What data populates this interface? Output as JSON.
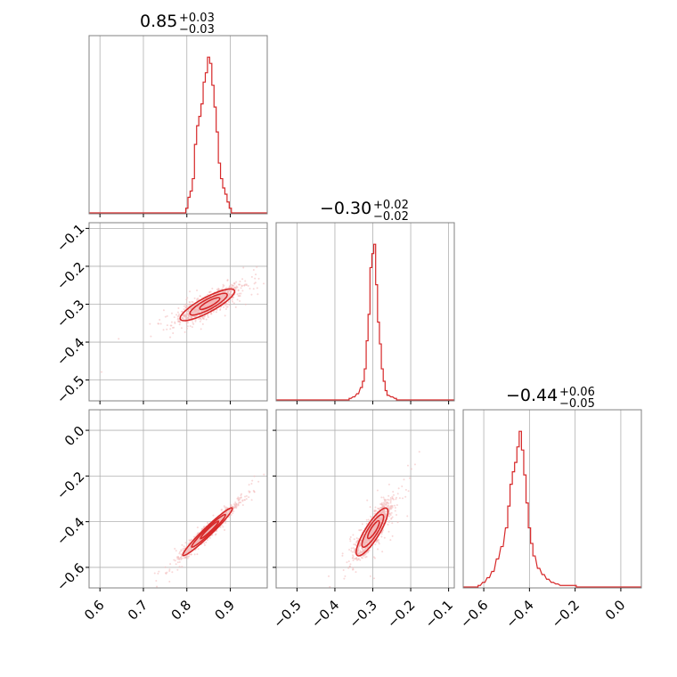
{
  "chart_data": [
    {
      "type": "histogram",
      "panel": "0-0",
      "title": {
        "value": "0.85",
        "plus": "+0.03",
        "minus": "−0.03"
      },
      "xlim": [
        0.575,
        0.985
      ],
      "x": [
        0.8,
        0.805,
        0.81,
        0.815,
        0.82,
        0.825,
        0.83,
        0.835,
        0.84,
        0.845,
        0.85,
        0.855,
        0.86,
        0.865,
        0.87,
        0.875,
        0.88,
        0.885,
        0.89,
        0.895,
        0.9
      ],
      "counts": [
        0.03,
        0.1,
        0.14,
        0.22,
        0.44,
        0.56,
        0.62,
        0.7,
        0.84,
        0.9,
        1.0,
        0.96,
        0.82,
        0.68,
        0.52,
        0.32,
        0.22,
        0.16,
        0.12,
        0.07,
        0.03
      ]
    },
    {
      "type": "scatter+contour",
      "panel": "1-0",
      "xlim": [
        0.575,
        0.985
      ],
      "ylim": [
        -0.555,
        -0.085
      ],
      "yticks": [
        "−0.1",
        "−0.2",
        "−0.3",
        "−0.4",
        "−0.5"
      ],
      "center": [
        0.85,
        -0.3
      ]
    },
    {
      "type": "histogram",
      "panel": "1-1",
      "title": {
        "value": "−0.30",
        "plus": "+0.02",
        "minus": "−0.02"
      },
      "xlim": [
        -0.555,
        -0.085
      ],
      "x": [
        -0.36,
        -0.35,
        -0.34,
        -0.33,
        -0.325,
        -0.32,
        -0.315,
        -0.31,
        -0.305,
        -0.3,
        -0.295,
        -0.29,
        -0.285,
        -0.28,
        -0.275,
        -0.27,
        -0.265,
        -0.26,
        -0.25,
        -0.24
      ],
      "counts": [
        0.01,
        0.02,
        0.04,
        0.08,
        0.12,
        0.2,
        0.38,
        0.55,
        0.85,
        0.94,
        1.0,
        0.74,
        0.5,
        0.36,
        0.2,
        0.12,
        0.06,
        0.03,
        0.02,
        0.01
      ]
    },
    {
      "type": "scatter+contour",
      "panel": "2-0",
      "xlim": [
        0.575,
        0.985
      ],
      "ylim": [
        -0.69,
        0.09
      ],
      "xticks": [
        "0.6",
        "0.7",
        "0.8",
        "0.9"
      ],
      "yticks": [
        "0.0",
        "−0.2",
        "−0.4",
        "−0.6"
      ],
      "center": [
        0.85,
        -0.44
      ]
    },
    {
      "type": "scatter+contour",
      "panel": "2-1",
      "xlim": [
        -0.555,
        -0.085
      ],
      "ylim": [
        -0.69,
        0.09
      ],
      "xticks": [
        "−0.5",
        "−0.4",
        "−0.3",
        "−0.2",
        "−0.1"
      ],
      "center": [
        -0.3,
        -0.44
      ]
    },
    {
      "type": "histogram",
      "panel": "2-2",
      "title": {
        "value": "−0.44",
        "plus": "+0.06",
        "minus": "−0.05"
      },
      "xlim": [
        -0.69,
        0.09
      ],
      "xticks": [
        "−0.6",
        "−0.4",
        "−0.2",
        "0.0"
      ],
      "x": [
        -0.62,
        -0.6,
        -0.58,
        -0.56,
        -0.54,
        -0.52,
        -0.5,
        -0.49,
        -0.48,
        -0.47,
        -0.46,
        -0.45,
        -0.44,
        -0.43,
        -0.42,
        -0.41,
        -0.4,
        -0.39,
        -0.38,
        -0.36,
        -0.34,
        -0.32,
        -0.3,
        -0.28,
        -0.26,
        -0.22,
        -0.2
      ],
      "counts": [
        0.01,
        0.03,
        0.06,
        0.1,
        0.18,
        0.26,
        0.38,
        0.52,
        0.66,
        0.74,
        0.8,
        0.9,
        1.0,
        0.88,
        0.72,
        0.54,
        0.38,
        0.28,
        0.2,
        0.12,
        0.08,
        0.05,
        0.03,
        0.02,
        0.01,
        0.01,
        0.01
      ]
    }
  ],
  "colors": {
    "line": "#d62728",
    "scatter": "#f2b8b8",
    "grid": "#b0b0b0",
    "frame": "#808080"
  }
}
